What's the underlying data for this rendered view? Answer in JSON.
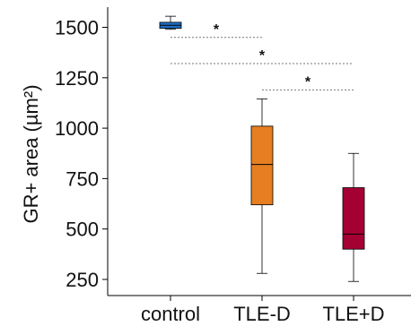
{
  "chart_data": {
    "type": "box",
    "title": "",
    "xlabel": "",
    "ylabel": "GR+ area (µm²)",
    "ylim": [
      170,
      1600
    ],
    "yticks": [
      250,
      500,
      750,
      1000,
      1250,
      1500
    ],
    "grid": false,
    "legend": "none",
    "categories": [
      "control",
      "TLE-D",
      "TLE+D"
    ],
    "boxes": [
      {
        "category": "control",
        "min": 1490,
        "q1": 1495,
        "median": 1510,
        "q3": 1525,
        "max": 1555,
        "color": "#1f6fc5"
      },
      {
        "category": "TLE-D",
        "min": 280,
        "q1": 620,
        "median": 820,
        "q3": 1010,
        "max": 1145,
        "color": "#e67e22"
      },
      {
        "category": "TLE+D",
        "min": 240,
        "q1": 400,
        "median": 475,
        "q3": 705,
        "max": 875,
        "color": "#a50034"
      }
    ],
    "significance": [
      {
        "from": "control",
        "to": "TLE-D",
        "label": "*",
        "y": 1450
      },
      {
        "from": "control",
        "to": "TLE+D",
        "label": "*",
        "y": 1320
      },
      {
        "from": "TLE-D",
        "to": "TLE+D",
        "label": "*",
        "y": 1190
      }
    ]
  }
}
